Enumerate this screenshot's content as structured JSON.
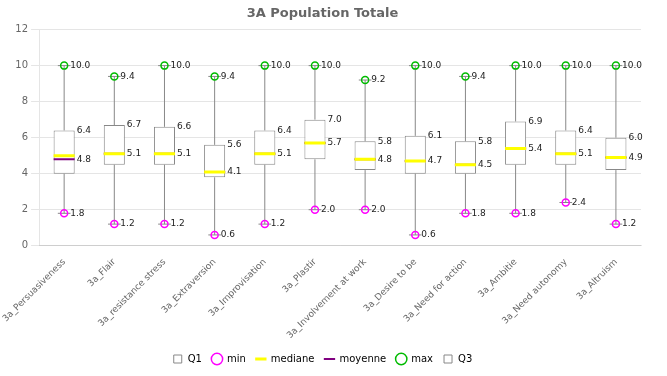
{
  "chart_data": {
    "type": "box",
    "title": "3A Population Totale",
    "categories": [
      "3a_Persuasiveness",
      "3a_Flair",
      "3a_resistance stress",
      "3a_Extraversion",
      "3a_Improvisation",
      "3a_Plastir",
      "3a_Involvement at work",
      "3a_Desire to be",
      "3a_Need for action",
      "3a_Ambitie",
      "3a_Need autonomy",
      "3a_Altruism"
    ],
    "series": [
      {
        "name": "Q1",
        "type": "box",
        "color": "#888888",
        "values": [
          4.0,
          4.5,
          4.5,
          3.8,
          4.5,
          4.8,
          4.2,
          4.0,
          4.0,
          4.5,
          4.5,
          4.2
        ]
      },
      {
        "name": "min",
        "type": "marker",
        "marker": "circle",
        "color": "#ff00ff",
        "data_labels": true,
        "values": [
          1.8,
          1.2,
          1.2,
          0.6,
          1.2,
          2.0,
          2.0,
          0.6,
          1.8,
          1.8,
          2.4,
          1.2
        ],
        "value_labels": [
          "1.8",
          "1.2",
          "1.2",
          "0.6",
          "1.2",
          "2.0",
          "2.0",
          "0.6",
          "1.8",
          "1.8",
          "2.4",
          "1.2"
        ]
      },
      {
        "name": "mediane",
        "type": "line",
        "color": "#ffff00",
        "values": [
          5.0,
          5.1,
          5.1,
          4.1,
          5.1,
          5.7,
          4.8,
          4.7,
          4.5,
          5.4,
          5.1,
          4.9
        ]
      },
      {
        "name": "moyenne",
        "type": "line",
        "color": "#800080",
        "data_labels": true,
        "values": [
          4.8,
          5.1,
          5.1,
          4.1,
          5.1,
          5.7,
          4.8,
          4.7,
          4.5,
          5.4,
          5.1,
          4.9
        ],
        "value_labels": [
          "4.8",
          "5.1",
          "5.1",
          "4.1",
          "5.1",
          "5.7",
          "4.8",
          "4.7",
          "4.5",
          "5.4",
          "5.1",
          "4.9"
        ]
      },
      {
        "name": "max",
        "type": "marker",
        "marker": "circle",
        "color": "#00bb00",
        "data_labels": true,
        "values": [
          10.0,
          9.4,
          10.0,
          9.4,
          10.0,
          10.0,
          9.2,
          10.0,
          9.4,
          10.0,
          10.0,
          10.0
        ],
        "value_labels": [
          "10.0",
          "9.4",
          "10.0",
          "9.4",
          "10.0",
          "10.0",
          "9.2",
          "10.0",
          "9.4",
          "10.0",
          "10.0",
          "10.0"
        ]
      },
      {
        "name": "Q3",
        "type": "box",
        "color": "#888888",
        "data_labels": true,
        "values": [
          6.4,
          6.7,
          6.6,
          5.6,
          6.4,
          7.0,
          5.8,
          6.1,
          5.8,
          6.9,
          6.4,
          6.0
        ],
        "value_labels": [
          "6.4",
          "6.7",
          "6.6",
          "5.6",
          "6.4",
          "7.0",
          "5.8",
          "6.1",
          "5.8",
          "6.9",
          "6.4",
          "6.0"
        ]
      }
    ],
    "ylim": [
      0,
      12
    ],
    "yticks": [
      0,
      2,
      4,
      6,
      8,
      10,
      12
    ],
    "grid": true,
    "legend": "bottom"
  }
}
